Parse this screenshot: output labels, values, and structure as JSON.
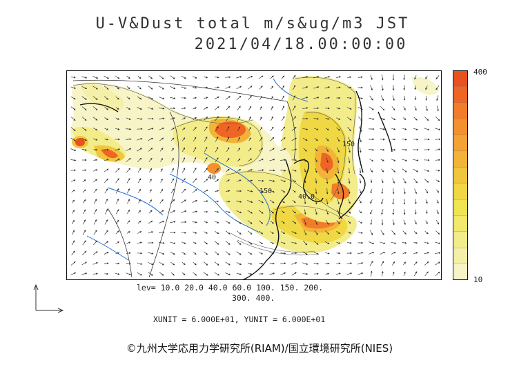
{
  "title": {
    "line1": "U-V&Dust total m/s&ug/m3 JST",
    "line2": "2021/04/18.00:00:00"
  },
  "colorbar": {
    "max_label": "400",
    "min_label": "10",
    "colors": [
      "#f7f4c8",
      "#f5f0a8",
      "#f3ec8a",
      "#f1e86c",
      "#efe552",
      "#efd843",
      "#f0c63c",
      "#f2b438",
      "#f3a233",
      "#f4902e",
      "#f27c29",
      "#ee6524",
      "#e9511f"
    ]
  },
  "levels": {
    "line1": "lev= 10.0 20.0 40.0 60.0 100. 150. 200.",
    "line2": "300. 400."
  },
  "units": {
    "text": "XUNIT = 6.000E+01, YUNIT = 6.000E+01"
  },
  "contour_labels": [
    "150",
    "40.0",
    "40",
    "150"
  ],
  "copyright": "©九州大学応用力学研究所(RIAM)/国立環境研究所(NIES)"
}
